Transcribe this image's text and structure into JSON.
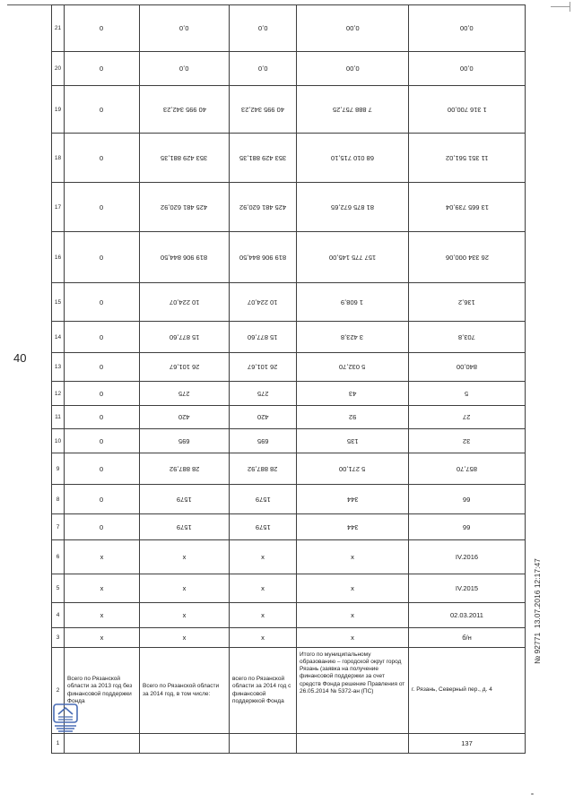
{
  "page": {
    "number": "40"
  },
  "stamp": {
    "fax_line": "№ 92771  13.07.2016 12:17:47"
  },
  "colors": {
    "stamp_blue": "#4a6db5",
    "border_gray": "#3a3a3a"
  },
  "table": {
    "rows": [
      {
        "num": "21",
        "type": "flip",
        "cells": [
          "0",
          "0,0",
          "0,0",
          "0,00",
          "0,00"
        ]
      },
      {
        "num": "20",
        "type": "flip",
        "cells": [
          "0",
          "0,0",
          "0,0",
          "0,00",
          "0,00"
        ]
      },
      {
        "num": "19",
        "type": "flip",
        "cells": [
          "0",
          "40 995 342,23",
          "40 995 342,23",
          "7 888 757,25",
          "1 316 700,00"
        ]
      },
      {
        "num": "18",
        "type": "flip",
        "cells": [
          "0",
          "353 429 881,35",
          "353 429 881,35",
          "68 010 715,10",
          "11 351 561,02"
        ]
      },
      {
        "num": "17",
        "type": "flip",
        "cells": [
          "0",
          "425 481 620,92",
          "425 481 620,92",
          "81 875 672,65",
          "13 665 739,04"
        ]
      },
      {
        "num": "16",
        "type": "flip",
        "cells": [
          "0",
          "819 906 844,50",
          "819 906 844,50",
          "157 775 145,00",
          "26 334 000,06"
        ]
      },
      {
        "num": "15",
        "type": "flip",
        "cells": [
          "0",
          "10 224,07",
          "10 224,07",
          "1 608,9",
          "136,2"
        ]
      },
      {
        "num": "14",
        "type": "flip",
        "cells": [
          "0",
          "15 877,60",
          "15 877,60",
          "3 423,8",
          "703,8"
        ]
      },
      {
        "num": "13",
        "type": "flip",
        "cells": [
          "0",
          "26 101,67",
          "26 101,67",
          "5 032,70",
          "840,00"
        ]
      },
      {
        "num": "12",
        "type": "flip",
        "cells": [
          "0",
          "275",
          "275",
          "43",
          "5"
        ]
      },
      {
        "num": "11",
        "type": "flip",
        "cells": [
          "0",
          "420",
          "420",
          "92",
          "27"
        ]
      },
      {
        "num": "10",
        "type": "flip",
        "cells": [
          "0",
          "695",
          "695",
          "135",
          "32"
        ]
      },
      {
        "num": "9",
        "type": "flip",
        "cells": [
          "0",
          "28 887,92",
          "28 887,92",
          "5 271,00",
          "857,70"
        ]
      },
      {
        "num": "8",
        "type": "flip",
        "cells": [
          "0",
          "1579",
          "1579",
          "344",
          "66"
        ]
      },
      {
        "num": "7",
        "type": "flip",
        "cells": [
          "0",
          "1579",
          "1579",
          "344",
          "66"
        ]
      },
      {
        "num": "6",
        "type": "plain",
        "cells": [
          "x",
          "x",
          "x",
          "x",
          "IV.2016"
        ]
      },
      {
        "num": "5",
        "type": "plain",
        "cells": [
          "x",
          "x",
          "x",
          "x",
          "IV.2015"
        ]
      },
      {
        "num": "4",
        "type": "plain",
        "cells": [
          "x",
          "x",
          "x",
          "x",
          "02.03.2011"
        ]
      },
      {
        "num": "3",
        "type": "plain",
        "cells": [
          "x",
          "x",
          "x",
          "x",
          "б/н"
        ]
      },
      {
        "num": "2",
        "type": "desc",
        "cells": [
          "Всего по Рязанской области за 2013 год без финансовой поддержки Фонда",
          "Всего по Рязанской области за 2014 год, в том числе:",
          "всего по Рязанской области за 2014 год с финансовой поддержкой Фонда",
          "Итого по муниципальному образованию – городской округ город Рязань (заявка на получение финансовой поддержки за счет средств Фонда решение Правления от 26.05.2014 № 5372-ан (ПС)",
          "г. Рязань, Северный пер., д. 4"
        ]
      },
      {
        "num": "1",
        "type": "plain",
        "cells": [
          "",
          "",
          "",
          "",
          "137"
        ]
      }
    ]
  }
}
